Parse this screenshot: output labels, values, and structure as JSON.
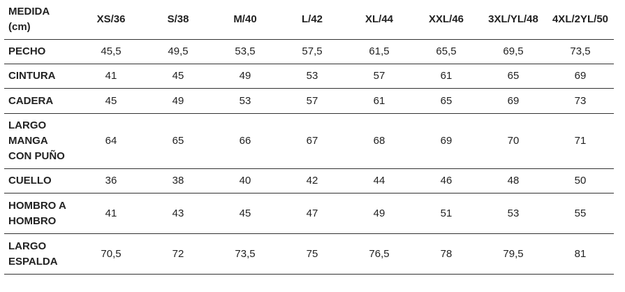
{
  "table": {
    "header": [
      "MEDIDA\n(cm)",
      "XS/36",
      "S/38",
      "M/40",
      "L/42",
      "XL/44",
      "XXL/46",
      "3XL/YL/48",
      "4XL/2YL/50"
    ],
    "rows": [
      [
        "PECHO",
        "45,5",
        "49,5",
        "53,5",
        "57,5",
        "61,5",
        "65,5",
        "69,5",
        "73,5"
      ],
      [
        "CINTURA",
        "41",
        "45",
        "49",
        "53",
        "57",
        "61",
        "65",
        "69"
      ],
      [
        "CADERA",
        "45",
        "49",
        "53",
        "57",
        "61",
        "65",
        "69",
        "73"
      ],
      [
        "LARGO\nMANGA\nCON PUÑO",
        "64",
        "65",
        "66",
        "67",
        "68",
        "69",
        "70",
        "71"
      ],
      [
        "CUELLO",
        "36",
        "38",
        "40",
        "42",
        "44",
        "46",
        "48",
        "50"
      ],
      [
        "HOMBRO A\nHOMBRO",
        "41",
        "43",
        "45",
        "47",
        "49",
        "51",
        "53",
        "55"
      ],
      [
        "LARGO\nESPALDA",
        "70,5",
        "72",
        "73,5",
        "75",
        "76,5",
        "78",
        "79,5",
        "81"
      ]
    ]
  }
}
